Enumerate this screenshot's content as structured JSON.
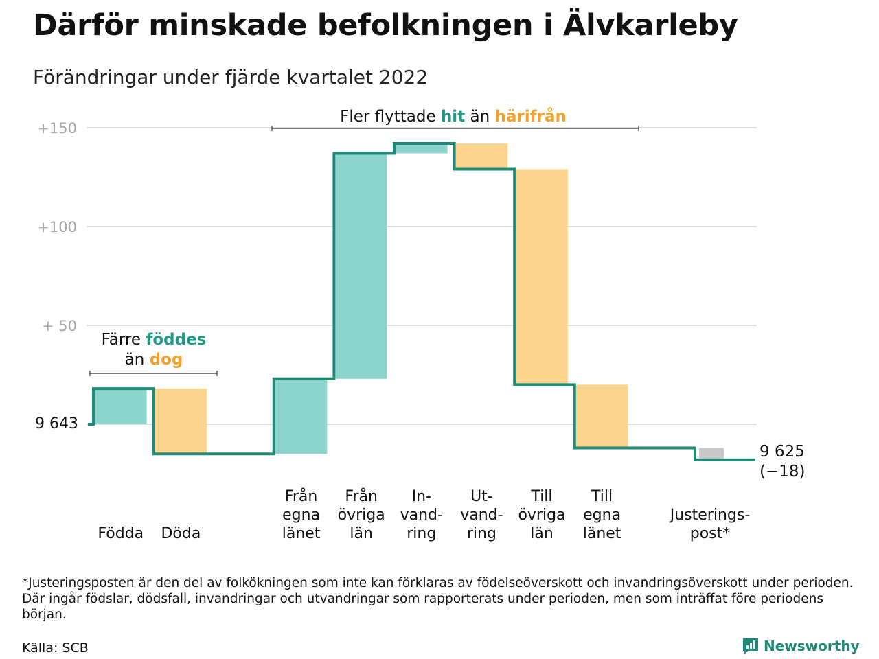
{
  "title": "Därför minskade befolkningen i Älvkarleby",
  "subtitle": "Förändringar under fjärde kvartalet 2022",
  "colors": {
    "increase": "#8dd5cc",
    "decrease": "#fbd58e",
    "neutral": "#c8c8c8",
    "line": "#1f8a78",
    "accent_teal": "#1f9a88",
    "accent_orange": "#f2a22a"
  },
  "chart_data": {
    "type": "waterfall",
    "baseline_population": 9643,
    "start_label": "9 643",
    "end_label": "9 625",
    "end_change_label": "(−18)",
    "y_axis": {
      "ticks": [
        {
          "value": 150,
          "label": "+150"
        },
        {
          "value": 100,
          "label": "+100"
        },
        {
          "value": 50,
          "label": "+ 50"
        }
      ],
      "range": [
        -25,
        165
      ],
      "grid": true
    },
    "steps": [
      {
        "label": [
          "Födda"
        ],
        "change": 18,
        "start": 0,
        "end": 18,
        "kind": "increase"
      },
      {
        "label": [
          "Döda"
        ],
        "change": -33,
        "start": 18,
        "end": -15,
        "kind": "decrease"
      },
      {
        "label": [
          "",
          "",
          ""
        ],
        "change": 0,
        "start": -15,
        "end": -15,
        "kind": "gap"
      },
      {
        "label": [
          "Från",
          "egna",
          "länet"
        ],
        "change": 38,
        "start": -15,
        "end": 23,
        "kind": "increase"
      },
      {
        "label": [
          "Från",
          "övriga",
          "län"
        ],
        "change": 114,
        "start": 23,
        "end": 137,
        "kind": "increase"
      },
      {
        "label": [
          "In-",
          "vand-",
          "ring"
        ],
        "change": 5,
        "start": 137,
        "end": 142,
        "kind": "increase"
      },
      {
        "label": [
          "Ut-",
          "vand-",
          "ring"
        ],
        "change": -13,
        "start": 142,
        "end": 129,
        "kind": "decrease"
      },
      {
        "label": [
          "Till",
          "övriga",
          "län"
        ],
        "change": -109,
        "start": 129,
        "end": 20,
        "kind": "decrease"
      },
      {
        "label": [
          "Till",
          "egna",
          "länet"
        ],
        "change": -32,
        "start": 20,
        "end": -12,
        "kind": "decrease"
      },
      {
        "label": [
          "",
          "",
          ""
        ],
        "change": 0,
        "start": -12,
        "end": -12,
        "kind": "gap"
      },
      {
        "label": [
          "Justerings-",
          "post*"
        ],
        "change": -6,
        "start": -12,
        "end": -18,
        "kind": "adjustment"
      }
    ],
    "annotations": {
      "births": {
        "line1_pre": "Färre ",
        "line1_hl": "föddes",
        "line2_pre": "än ",
        "line2_hl": "dog"
      },
      "migration": {
        "pre": "Fler flyttade ",
        "hl1": "hit",
        "mid": " än ",
        "hl2": "härifrån"
      }
    }
  },
  "footnote": "*Justeringsposten är den del av folkökningen som inte kan förklaras av födelseöverskott och invandringsöverskott under perioden. Där ingår födslar, dödsfall, invandringar och utvandringar som rapporterats under perioden, men som inträffat före periodens början.",
  "source": "Källa: SCB",
  "brand": "Newsworthy"
}
